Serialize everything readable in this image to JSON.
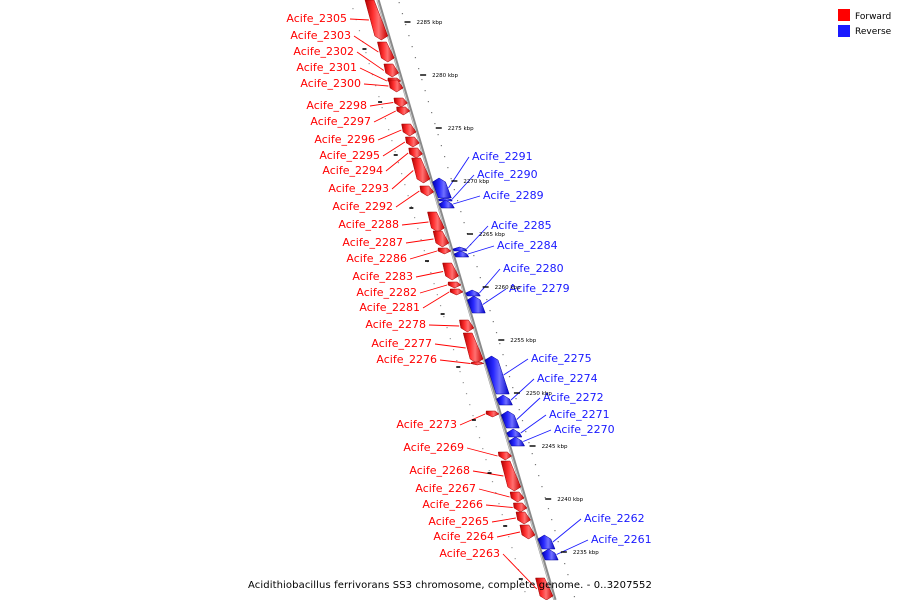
{
  "legend": [
    {
      "label": "Forward",
      "color": "#ff0000"
    },
    {
      "label": "Reverse",
      "color": "#1a1aff"
    }
  ],
  "caption": "Acidithiobacillus ferrivorans SS3 chromosome, complete genome. - 0..3207552",
  "kbp_ticks": [
    {
      "label": "2285 kbp",
      "kbp": 2285
    },
    {
      "label": "2280 kbp",
      "kbp": 2280
    },
    {
      "label": "2275 kbp",
      "kbp": 2275
    },
    {
      "label": "2270 kbp",
      "kbp": 2270
    },
    {
      "label": "2265 kbp",
      "kbp": 2265
    },
    {
      "label": "2260 kbp",
      "kbp": 2260
    },
    {
      "label": "2255 kbp",
      "kbp": 2255
    },
    {
      "label": "2250 kbp",
      "kbp": 2250
    },
    {
      "label": "2245 kbp",
      "kbp": 2245
    },
    {
      "label": "2240 kbp",
      "kbp": 2240
    },
    {
      "label": "2235 kbp",
      "kbp": 2235
    }
  ],
  "genes": [
    {
      "name": "Acife_2305",
      "strand": "forward"
    },
    {
      "name": "Acife_2303",
      "strand": "forward"
    },
    {
      "name": "Acife_2302",
      "strand": "forward"
    },
    {
      "name": "Acife_2301",
      "strand": "forward"
    },
    {
      "name": "Acife_2300",
      "strand": "forward"
    },
    {
      "name": "Acife_2298",
      "strand": "forward"
    },
    {
      "name": "Acife_2297",
      "strand": "forward"
    },
    {
      "name": "Acife_2296",
      "strand": "forward"
    },
    {
      "name": "Acife_2295",
      "strand": "forward"
    },
    {
      "name": "Acife_2294",
      "strand": "forward"
    },
    {
      "name": "Acife_2293",
      "strand": "forward"
    },
    {
      "name": "Acife_2292",
      "strand": "forward"
    },
    {
      "name": "Acife_2288",
      "strand": "forward"
    },
    {
      "name": "Acife_2287",
      "strand": "forward"
    },
    {
      "name": "Acife_2286",
      "strand": "forward"
    },
    {
      "name": "Acife_2283",
      "strand": "forward"
    },
    {
      "name": "Acife_2282",
      "strand": "forward"
    },
    {
      "name": "Acife_2281",
      "strand": "forward"
    },
    {
      "name": "Acife_2278",
      "strand": "forward"
    },
    {
      "name": "Acife_2277",
      "strand": "forward"
    },
    {
      "name": "Acife_2276",
      "strand": "forward"
    },
    {
      "name": "Acife_2273",
      "strand": "forward"
    },
    {
      "name": "Acife_2269",
      "strand": "forward"
    },
    {
      "name": "Acife_2268",
      "strand": "forward"
    },
    {
      "name": "Acife_2267",
      "strand": "forward"
    },
    {
      "name": "Acife_2266",
      "strand": "forward"
    },
    {
      "name": "Acife_2265",
      "strand": "forward"
    },
    {
      "name": "Acife_2264",
      "strand": "forward"
    },
    {
      "name": "Acife_2263",
      "strand": "forward"
    },
    {
      "name": "Acife_2291",
      "strand": "reverse"
    },
    {
      "name": "Acife_2290",
      "strand": "reverse"
    },
    {
      "name": "Acife_2289",
      "strand": "reverse"
    },
    {
      "name": "Acife_2285",
      "strand": "reverse"
    },
    {
      "name": "Acife_2284",
      "strand": "reverse"
    },
    {
      "name": "Acife_2280",
      "strand": "reverse"
    },
    {
      "name": "Acife_2279",
      "strand": "reverse"
    },
    {
      "name": "Acife_2275",
      "strand": "reverse"
    },
    {
      "name": "Acife_2274",
      "strand": "reverse"
    },
    {
      "name": "Acife_2272",
      "strand": "reverse"
    },
    {
      "name": "Acife_2271",
      "strand": "reverse"
    },
    {
      "name": "Acife_2270",
      "strand": "reverse"
    },
    {
      "name": "Acife_2262",
      "strand": "reverse"
    },
    {
      "name": "Acife_2261",
      "strand": "reverse"
    }
  ]
}
